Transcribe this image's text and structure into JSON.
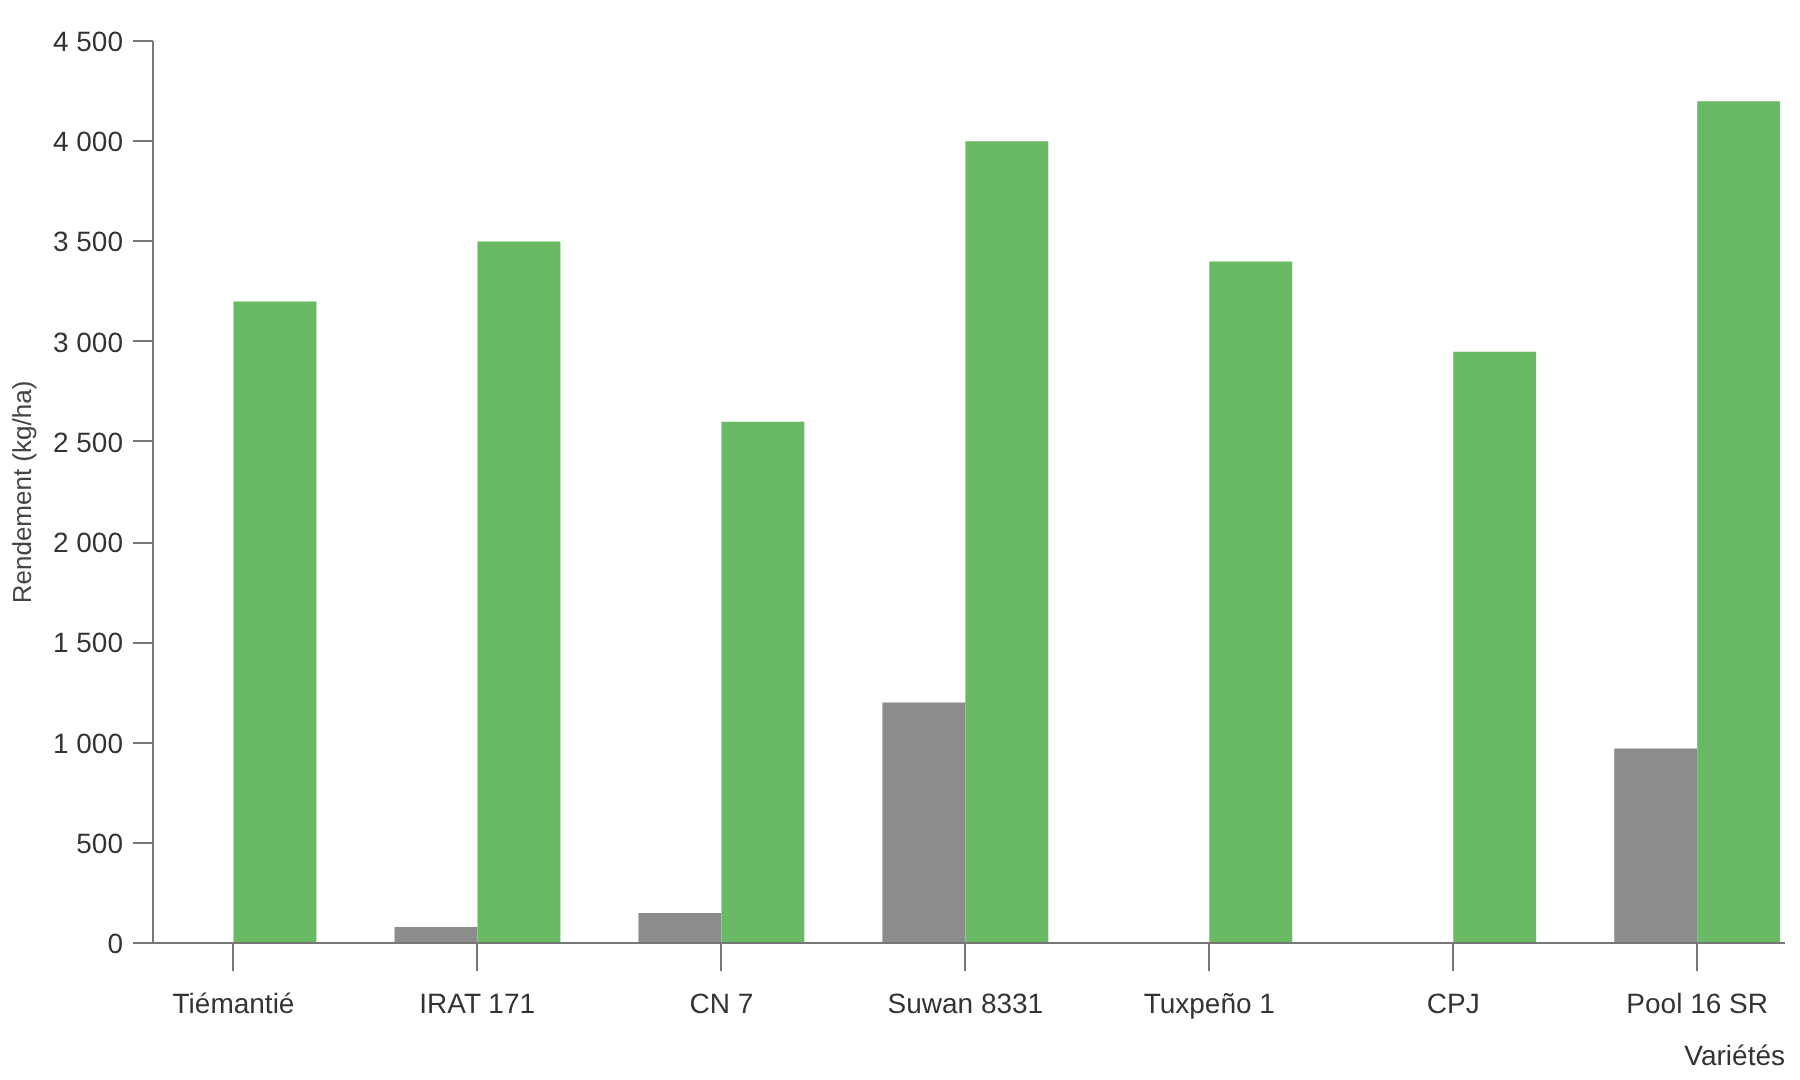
{
  "chart_data": {
    "type": "bar",
    "xlabel": "Variétés",
    "ylabel": "Rendement (kg/ha)",
    "categories": [
      "Tiémantié",
      "IRAT 171",
      "CN 7",
      "Suwan 8331",
      "Tuxpeño 1",
      "CPJ",
      "Pool 16 SR"
    ],
    "series": [
      {
        "color": "#8c8c8c",
        "values": [
          null,
          80,
          150,
          1200,
          null,
          null,
          970
        ]
      },
      {
        "color": "#6ab964",
        "values": [
          3200,
          3500,
          2600,
          4000,
          3400,
          2950,
          4200
        ]
      }
    ],
    "ylim": [
      0,
      4500
    ],
    "yticks": [
      {
        "value": 0,
        "label": "0"
      },
      {
        "value": 500,
        "label": "500"
      },
      {
        "value": 1000,
        "label": "1 000"
      },
      {
        "value": 1500,
        "label": "1 500"
      },
      {
        "value": 2000,
        "label": "2 000"
      },
      {
        "value": 2500,
        "label": "2 500"
      },
      {
        "value": 3000,
        "label": "3 000"
      },
      {
        "value": 3500,
        "label": "3 500"
      },
      {
        "value": 4000,
        "label": "4 000"
      },
      {
        "value": 4500,
        "label": "4 500"
      }
    ],
    "grid": false
  }
}
